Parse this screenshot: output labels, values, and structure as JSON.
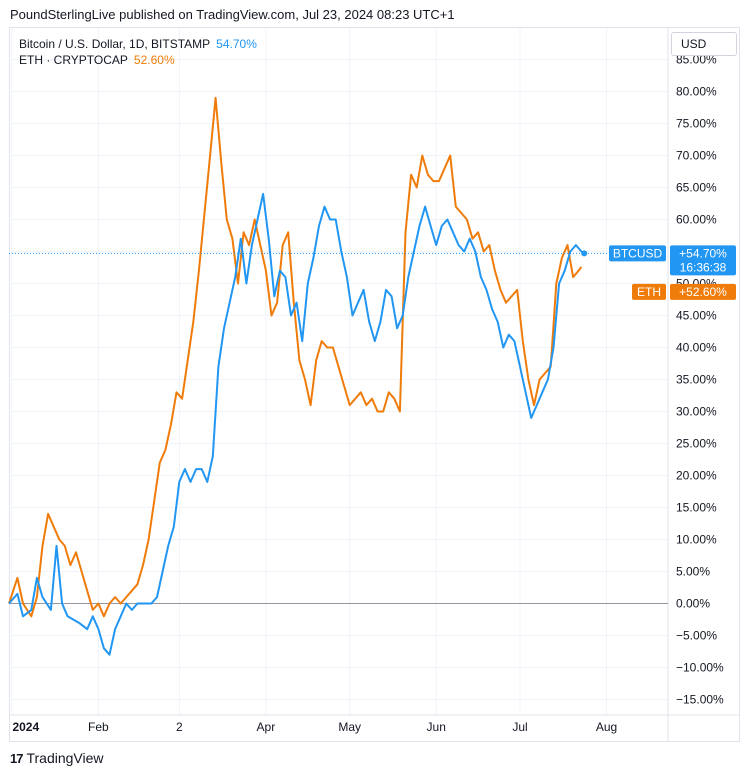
{
  "header": {
    "publisher_line": "PoundSterlingLive published on TradingView.com, Jul 23, 2024 08:23 UTC+1"
  },
  "legend": [
    {
      "label": "Bitcoin / U.S. Dollar, 1D, BITSTAMP",
      "value": "54.70%",
      "color": "#2196f3"
    },
    {
      "label": "ETH · CRYPTOCAP",
      "value": "52.60%",
      "color": "#ef7c0a"
    }
  ],
  "currency_button": "USD",
  "footer": {
    "brand": "TradingView",
    "logo": "17"
  },
  "badges": {
    "btc_symbol": "BTCUSD",
    "btc_value": "+54.70%",
    "btc_countdown": "16:36:38",
    "eth_symbol": "ETH",
    "eth_value": "+52.60%"
  },
  "chart_data": {
    "type": "line",
    "ylabel_unit": "%",
    "ylim": [
      -16,
      86
    ],
    "yticks": [
      -15,
      -10,
      -5,
      0,
      5,
      10,
      15,
      20,
      25,
      30,
      35,
      40,
      45,
      50,
      55,
      60,
      65,
      70,
      75,
      80,
      85
    ],
    "ytick_labels": [
      "−15.00%",
      "−10.00%",
      "−5.00%",
      "0.00%",
      "5.00%",
      "10.00%",
      "15.00%",
      "20.00%",
      "25.00%",
      "30.00%",
      "35.00%",
      "40.00%",
      "45.00%",
      "50.00%",
      "55.00%",
      "60.00%",
      "65.00%",
      "70.00%",
      "75.00%",
      "80.00%",
      "85.00%"
    ],
    "xlabels": [
      {
        "label": "2024",
        "date": "2024-01-01",
        "bold": true
      },
      {
        "label": "Feb",
        "date": "2024-02-01"
      },
      {
        "label": "2",
        "date": "2024-03-01"
      },
      {
        "label": "Apr",
        "date": "2024-04-01"
      },
      {
        "label": "May",
        "date": "2024-05-01"
      },
      {
        "label": "Jun",
        "date": "2024-06-01"
      },
      {
        "label": "Jul",
        "date": "2024-07-01"
      },
      {
        "label": "Aug",
        "date": "2024-08-01"
      }
    ],
    "xlim": [
      "2023-12-31",
      "2024-08-23"
    ],
    "grid": true,
    "zero_line": 0,
    "series": [
      {
        "name": "BTCUSD",
        "color": "#2196f3",
        "points": [
          [
            "2023-12-31",
            0
          ],
          [
            "2024-01-03",
            1.5
          ],
          [
            "2024-01-05",
            -2
          ],
          [
            "2024-01-08",
            -1
          ],
          [
            "2024-01-10",
            4
          ],
          [
            "2024-01-12",
            1
          ],
          [
            "2024-01-15",
            -1
          ],
          [
            "2024-01-17",
            9
          ],
          [
            "2024-01-19",
            0
          ],
          [
            "2024-01-21",
            -2
          ],
          [
            "2024-01-23",
            -2.5
          ],
          [
            "2024-01-25",
            -3
          ],
          [
            "2024-01-28",
            -4
          ],
          [
            "2024-01-30",
            -2
          ],
          [
            "2024-02-01",
            -4
          ],
          [
            "2024-02-03",
            -7
          ],
          [
            "2024-02-05",
            -8
          ],
          [
            "2024-02-07",
            -4
          ],
          [
            "2024-02-09",
            -2
          ],
          [
            "2024-02-11",
            0
          ],
          [
            "2024-02-13",
            -1
          ],
          [
            "2024-02-15",
            0
          ],
          [
            "2024-02-18",
            0
          ],
          [
            "2024-02-20",
            0
          ],
          [
            "2024-02-22",
            1
          ],
          [
            "2024-02-24",
            5
          ],
          [
            "2024-02-26",
            9
          ],
          [
            "2024-02-28",
            12
          ],
          [
            "2024-03-01",
            19
          ],
          [
            "2024-03-03",
            21
          ],
          [
            "2024-03-05",
            19
          ],
          [
            "2024-03-07",
            21
          ],
          [
            "2024-03-09",
            21
          ],
          [
            "2024-03-11",
            19
          ],
          [
            "2024-03-13",
            23
          ],
          [
            "2024-03-15",
            37
          ],
          [
            "2024-03-17",
            43
          ],
          [
            "2024-03-19",
            47
          ],
          [
            "2024-03-21",
            51
          ],
          [
            "2024-03-23",
            57
          ],
          [
            "2024-03-25",
            50
          ],
          [
            "2024-03-27",
            56
          ],
          [
            "2024-03-29",
            60
          ],
          [
            "2024-03-31",
            64
          ],
          [
            "2024-04-02",
            57
          ],
          [
            "2024-04-04",
            48
          ],
          [
            "2024-04-06",
            52
          ],
          [
            "2024-04-08",
            51
          ],
          [
            "2024-04-10",
            45
          ],
          [
            "2024-04-12",
            47
          ],
          [
            "2024-04-14",
            41
          ],
          [
            "2024-04-16",
            50
          ],
          [
            "2024-04-18",
            54
          ],
          [
            "2024-04-20",
            59
          ],
          [
            "2024-04-22",
            62
          ],
          [
            "2024-04-24",
            60
          ],
          [
            "2024-04-26",
            60
          ],
          [
            "2024-04-28",
            55
          ],
          [
            "2024-04-30",
            51
          ],
          [
            "2024-05-02",
            45
          ],
          [
            "2024-05-04",
            47
          ],
          [
            "2024-05-06",
            49
          ],
          [
            "2024-05-08",
            44
          ],
          [
            "2024-05-10",
            41
          ],
          [
            "2024-05-12",
            44
          ],
          [
            "2024-05-14",
            49
          ],
          [
            "2024-05-16",
            48
          ],
          [
            "2024-05-18",
            43
          ],
          [
            "2024-05-20",
            45
          ],
          [
            "2024-05-22",
            51
          ],
          [
            "2024-05-24",
            55
          ],
          [
            "2024-05-26",
            59
          ],
          [
            "2024-05-28",
            62
          ],
          [
            "2024-05-30",
            59
          ],
          [
            "2024-06-01",
            56
          ],
          [
            "2024-06-03",
            59
          ],
          [
            "2024-06-05",
            60
          ],
          [
            "2024-06-07",
            58
          ],
          [
            "2024-06-09",
            56
          ],
          [
            "2024-06-11",
            55
          ],
          [
            "2024-06-13",
            57
          ],
          [
            "2024-06-15",
            55
          ],
          [
            "2024-06-17",
            51
          ],
          [
            "2024-06-19",
            49
          ],
          [
            "2024-06-21",
            46
          ],
          [
            "2024-06-23",
            44
          ],
          [
            "2024-06-25",
            40
          ],
          [
            "2024-06-27",
            42
          ],
          [
            "2024-06-29",
            41
          ],
          [
            "2024-07-01",
            37
          ],
          [
            "2024-07-03",
            33
          ],
          [
            "2024-07-05",
            29
          ],
          [
            "2024-07-07",
            31
          ],
          [
            "2024-07-09",
            33
          ],
          [
            "2024-07-11",
            35
          ],
          [
            "2024-07-13",
            40
          ],
          [
            "2024-07-15",
            50
          ],
          [
            "2024-07-17",
            52
          ],
          [
            "2024-07-19",
            55
          ],
          [
            "2024-07-21",
            56
          ],
          [
            "2024-07-23",
            55
          ],
          [
            "2024-07-24",
            54.7
          ]
        ]
      },
      {
        "name": "ETH",
        "color": "#ef7c0a",
        "points": [
          [
            "2023-12-31",
            0
          ],
          [
            "2024-01-03",
            4
          ],
          [
            "2024-01-05",
            0
          ],
          [
            "2024-01-08",
            -2
          ],
          [
            "2024-01-10",
            1
          ],
          [
            "2024-01-12",
            9
          ],
          [
            "2024-01-14",
            14
          ],
          [
            "2024-01-16",
            12
          ],
          [
            "2024-01-18",
            10
          ],
          [
            "2024-01-20",
            9
          ],
          [
            "2024-01-22",
            6
          ],
          [
            "2024-01-24",
            8
          ],
          [
            "2024-01-26",
            5
          ],
          [
            "2024-01-28",
            2
          ],
          [
            "2024-01-30",
            -1
          ],
          [
            "2024-02-01",
            0
          ],
          [
            "2024-02-03",
            -2
          ],
          [
            "2024-02-05",
            0
          ],
          [
            "2024-02-07",
            1
          ],
          [
            "2024-02-09",
            0
          ],
          [
            "2024-02-11",
            1
          ],
          [
            "2024-02-13",
            2
          ],
          [
            "2024-02-15",
            3
          ],
          [
            "2024-02-17",
            6
          ],
          [
            "2024-02-19",
            10
          ],
          [
            "2024-02-21",
            16
          ],
          [
            "2024-02-23",
            22
          ],
          [
            "2024-02-25",
            24
          ],
          [
            "2024-02-27",
            28
          ],
          [
            "2024-02-29",
            33
          ],
          [
            "2024-03-02",
            32
          ],
          [
            "2024-03-04",
            38
          ],
          [
            "2024-03-06",
            44
          ],
          [
            "2024-03-08",
            52
          ],
          [
            "2024-03-10",
            61
          ],
          [
            "2024-03-12",
            70
          ],
          [
            "2024-03-14",
            79
          ],
          [
            "2024-03-16",
            69
          ],
          [
            "2024-03-18",
            60
          ],
          [
            "2024-03-20",
            57
          ],
          [
            "2024-03-22",
            50
          ],
          [
            "2024-03-24",
            58
          ],
          [
            "2024-03-26",
            56
          ],
          [
            "2024-03-28",
            60
          ],
          [
            "2024-03-30",
            56
          ],
          [
            "2024-04-01",
            52
          ],
          [
            "2024-04-03",
            45
          ],
          [
            "2024-04-05",
            47
          ],
          [
            "2024-04-07",
            56
          ],
          [
            "2024-04-09",
            58
          ],
          [
            "2024-04-11",
            47
          ],
          [
            "2024-04-13",
            38
          ],
          [
            "2024-04-15",
            35
          ],
          [
            "2024-04-17",
            31
          ],
          [
            "2024-04-19",
            38
          ],
          [
            "2024-04-21",
            41
          ],
          [
            "2024-04-23",
            40
          ],
          [
            "2024-04-25",
            40
          ],
          [
            "2024-04-27",
            37
          ],
          [
            "2024-04-29",
            34
          ],
          [
            "2024-05-01",
            31
          ],
          [
            "2024-05-03",
            32
          ],
          [
            "2024-05-05",
            33
          ],
          [
            "2024-05-07",
            31
          ],
          [
            "2024-05-09",
            32
          ],
          [
            "2024-05-11",
            30
          ],
          [
            "2024-05-13",
            30
          ],
          [
            "2024-05-15",
            33
          ],
          [
            "2024-05-17",
            32
          ],
          [
            "2024-05-19",
            30
          ],
          [
            "2024-05-21",
            58
          ],
          [
            "2024-05-23",
            67
          ],
          [
            "2024-05-25",
            65
          ],
          [
            "2024-05-27",
            70
          ],
          [
            "2024-05-29",
            67
          ],
          [
            "2024-05-31",
            66
          ],
          [
            "2024-06-02",
            66
          ],
          [
            "2024-06-04",
            68
          ],
          [
            "2024-06-06",
            70
          ],
          [
            "2024-06-08",
            62
          ],
          [
            "2024-06-10",
            61
          ],
          [
            "2024-06-12",
            60
          ],
          [
            "2024-06-14",
            57
          ],
          [
            "2024-06-16",
            58
          ],
          [
            "2024-06-18",
            55
          ],
          [
            "2024-06-20",
            56
          ],
          [
            "2024-06-22",
            52
          ],
          [
            "2024-06-24",
            49
          ],
          [
            "2024-06-26",
            47
          ],
          [
            "2024-06-28",
            48
          ],
          [
            "2024-06-30",
            49
          ],
          [
            "2024-07-02",
            41
          ],
          [
            "2024-07-04",
            35
          ],
          [
            "2024-07-06",
            31
          ],
          [
            "2024-07-08",
            35
          ],
          [
            "2024-07-10",
            36
          ],
          [
            "2024-07-12",
            37
          ],
          [
            "2024-07-14",
            50
          ],
          [
            "2024-07-16",
            54
          ],
          [
            "2024-07-18",
            56
          ],
          [
            "2024-07-20",
            51
          ],
          [
            "2024-07-22",
            52
          ],
          [
            "2024-07-23",
            52.6
          ]
        ]
      }
    ]
  }
}
